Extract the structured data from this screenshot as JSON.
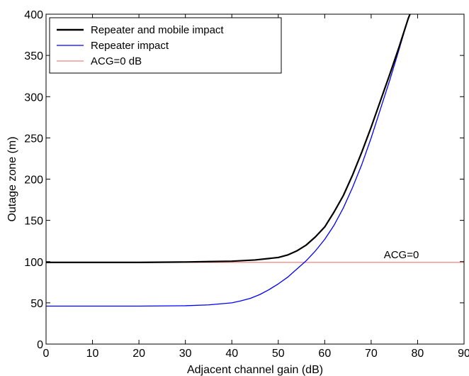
{
  "chart_data": {
    "type": "line",
    "xlabel": "Adjacent channel gain (dB)",
    "ylabel": "Outage zone (m)",
    "xlim": [
      0,
      90
    ],
    "ylim": [
      0,
      400
    ],
    "xticks": [
      0,
      10,
      20,
      30,
      40,
      50,
      60,
      70,
      80,
      90
    ],
    "yticks": [
      0,
      50,
      100,
      150,
      200,
      250,
      300,
      350,
      400
    ],
    "grid": false,
    "legend_position": "top-left",
    "series": [
      {
        "name": "Repeater and mobile impact",
        "color": "#000000",
        "x": [
          0,
          10,
          20,
          30,
          35,
          40,
          45,
          50,
          52,
          54,
          56,
          58,
          60,
          62,
          64,
          66,
          68,
          70,
          72,
          74,
          76,
          78,
          78.5
        ],
        "y": [
          99,
          99,
          99,
          99.5,
          100,
          100.5,
          102,
          105,
          108,
          113,
          120,
          130,
          142,
          160,
          180,
          205,
          233,
          263,
          295,
          327,
          360,
          395,
          402
        ]
      },
      {
        "name": "Repeater impact",
        "color": "#0000ff",
        "x": [
          0,
          10,
          20,
          30,
          35,
          40,
          42,
          44,
          46,
          48,
          50,
          52,
          54,
          56,
          58,
          60,
          62,
          64,
          66,
          68,
          70,
          72,
          74,
          76,
          78,
          78.5
        ],
        "y": [
          46,
          46,
          46,
          46.5,
          47.5,
          50,
          52.5,
          55.5,
          60,
          66,
          73,
          81,
          91,
          101,
          113,
          127,
          144,
          165,
          190,
          218,
          250,
          285,
          320,
          357,
          395,
          402
        ]
      },
      {
        "name": "ACG=0 dB",
        "color": "#f08080",
        "x": [
          0,
          90
        ],
        "y": [
          99,
          99
        ]
      }
    ],
    "annotations": [
      {
        "text": "ACG=0",
        "x": 76.5,
        "y": 99
      }
    ]
  }
}
